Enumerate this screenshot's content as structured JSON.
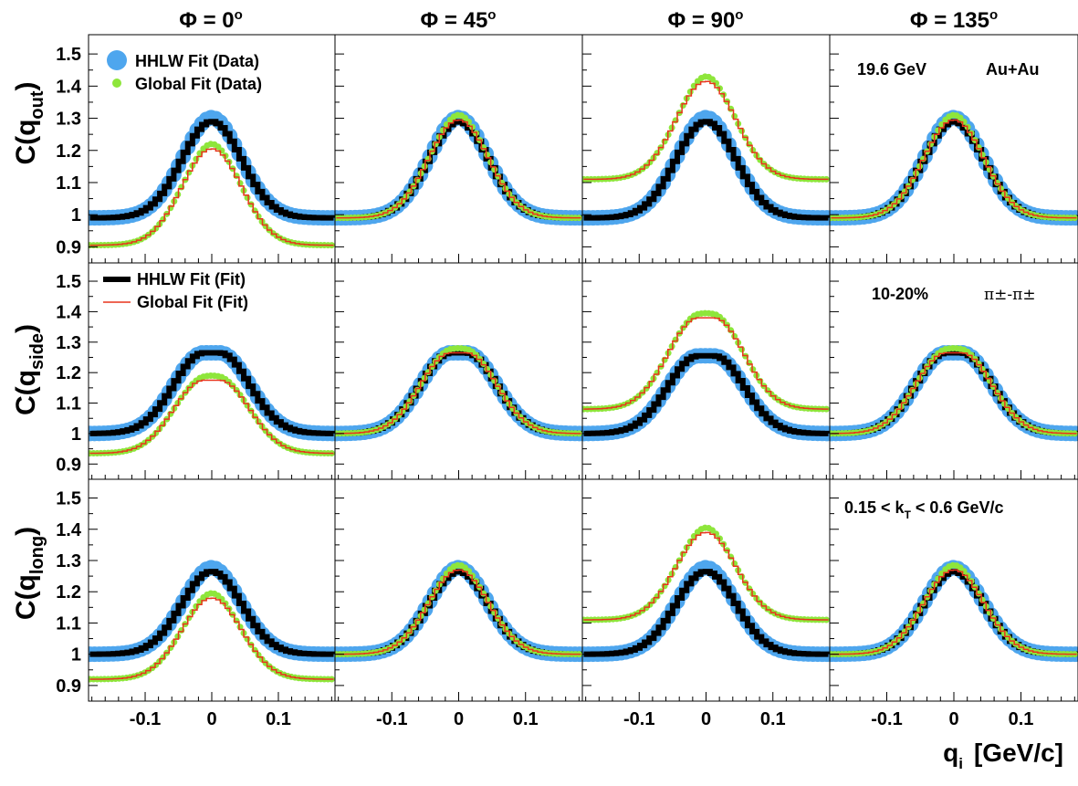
{
  "figure": {
    "columns": [
      {
        "prefix": "Φ = ",
        "value": "0",
        "sup": "o"
      },
      {
        "prefix": "Φ = ",
        "value": "45",
        "sup": "o"
      },
      {
        "prefix": "Φ = ",
        "value": "90",
        "sup": "o"
      },
      {
        "prefix": "Φ = ",
        "value": "135",
        "sup": "o"
      }
    ],
    "rows": [
      {
        "base": "C(q",
        "sub": "out",
        "close": ")"
      },
      {
        "base": "C(q",
        "sub": "side",
        "close": ")"
      },
      {
        "base": "C(q",
        "sub": "long",
        "close": ")"
      }
    ],
    "xlabel": {
      "base": "q",
      "sub": "i",
      "unit": "[GeV/c]"
    },
    "legend": {
      "hhlw_data": "HHLW Fit (Data)",
      "global_data": "Global Fit (Data)",
      "hhlw_fit": "HHLW Fit (Fit)",
      "global_fit": "Global Fit (Fit)"
    },
    "annotations": {
      "energy": "19.6 GeV",
      "system": "Au+Au",
      "centrality": "10-20%",
      "pair": "π±-π±",
      "kt": {
        "a": "0.15 < k",
        "sub": "T",
        "b": " < 0.6 GeV/c"
      }
    },
    "colors": {
      "hhlw_data": "#4ea6ee",
      "global_data": "#8ee63b",
      "hhlw_fit": "#000000",
      "global_fit": "#e8341c"
    }
  },
  "chart_data": {
    "type": "scatter",
    "layout": "3 rows x 4 columns grid of panels",
    "xlim": [
      -0.185,
      0.185
    ],
    "ylim": [
      0.85,
      1.56
    ],
    "xticks": [
      -0.1,
      0,
      0.1
    ],
    "xtick_labels": [
      "-0.1",
      "0",
      "0.1"
    ],
    "yticks": [
      0.9,
      1,
      1.1,
      1.2,
      1.3,
      1.4,
      1.5
    ],
    "ytick_labels": [
      "0.9",
      "1",
      "1.1",
      "1.2",
      "1.3",
      "1.4",
      "1.5"
    ],
    "series_names": [
      "HHLW Fit (Data)",
      "Global Fit (Data)",
      "HHLW Fit (Fit)",
      "Global Fit (Fit)"
    ],
    "panels": [
      {
        "row": "out",
        "phi": 0,
        "hhlw": {
          "base": 0.99,
          "peak": 1.29,
          "width": 0.045
        },
        "global": {
          "base": 0.905,
          "peak": 1.205,
          "width": 0.045
        }
      },
      {
        "row": "out",
        "phi": 45,
        "hhlw": {
          "base": 0.99,
          "peak": 1.29,
          "width": 0.045
        },
        "global": {
          "base": 0.99,
          "peak": 1.295,
          "width": 0.045
        }
      },
      {
        "row": "out",
        "phi": 90,
        "hhlw": {
          "base": 0.99,
          "peak": 1.29,
          "width": 0.045
        },
        "global": {
          "base": 1.11,
          "peak": 1.415,
          "width": 0.045
        }
      },
      {
        "row": "out",
        "phi": 135,
        "hhlw": {
          "base": 0.99,
          "peak": 1.29,
          "width": 0.045
        },
        "global": {
          "base": 0.99,
          "peak": 1.295,
          "width": 0.045
        }
      },
      {
        "row": "side",
        "phi": 0,
        "hhlw": {
          "base": 1.0,
          "peak": 1.265,
          "width": 0.045,
          "flat": 0.012
        },
        "global": {
          "base": 0.935,
          "peak": 1.175,
          "width": 0.045,
          "flat": 0.012
        }
      },
      {
        "row": "side",
        "phi": 45,
        "hhlw": {
          "base": 1.0,
          "peak": 1.265,
          "width": 0.045,
          "flat": 0.012
        },
        "global": {
          "base": 1.0,
          "peak": 1.265,
          "width": 0.045,
          "flat": 0.012
        }
      },
      {
        "row": "side",
        "phi": 90,
        "hhlw": {
          "base": 1.0,
          "peak": 1.255,
          "width": 0.045,
          "flat": 0.012
        },
        "global": {
          "base": 1.08,
          "peak": 1.38,
          "width": 0.045,
          "flat": 0.012
        }
      },
      {
        "row": "side",
        "phi": 135,
        "hhlw": {
          "base": 1.0,
          "peak": 1.265,
          "width": 0.045,
          "flat": 0.012
        },
        "global": {
          "base": 1.0,
          "peak": 1.265,
          "width": 0.045,
          "flat": 0.012
        }
      },
      {
        "row": "long",
        "phi": 0,
        "hhlw": {
          "base": 1.0,
          "peak": 1.265,
          "width": 0.045
        },
        "global": {
          "base": 0.92,
          "peak": 1.18,
          "width": 0.045
        }
      },
      {
        "row": "long",
        "phi": 45,
        "hhlw": {
          "base": 1.0,
          "peak": 1.265,
          "width": 0.045
        },
        "global": {
          "base": 1.0,
          "peak": 1.27,
          "width": 0.045
        }
      },
      {
        "row": "long",
        "phi": 90,
        "hhlw": {
          "base": 1.0,
          "peak": 1.265,
          "width": 0.045
        },
        "global": {
          "base": 1.11,
          "peak": 1.39,
          "width": 0.045
        }
      },
      {
        "row": "long",
        "phi": 135,
        "hhlw": {
          "base": 1.0,
          "peak": 1.265,
          "width": 0.045
        },
        "global": {
          "base": 1.0,
          "peak": 1.27,
          "width": 0.045
        }
      }
    ]
  }
}
